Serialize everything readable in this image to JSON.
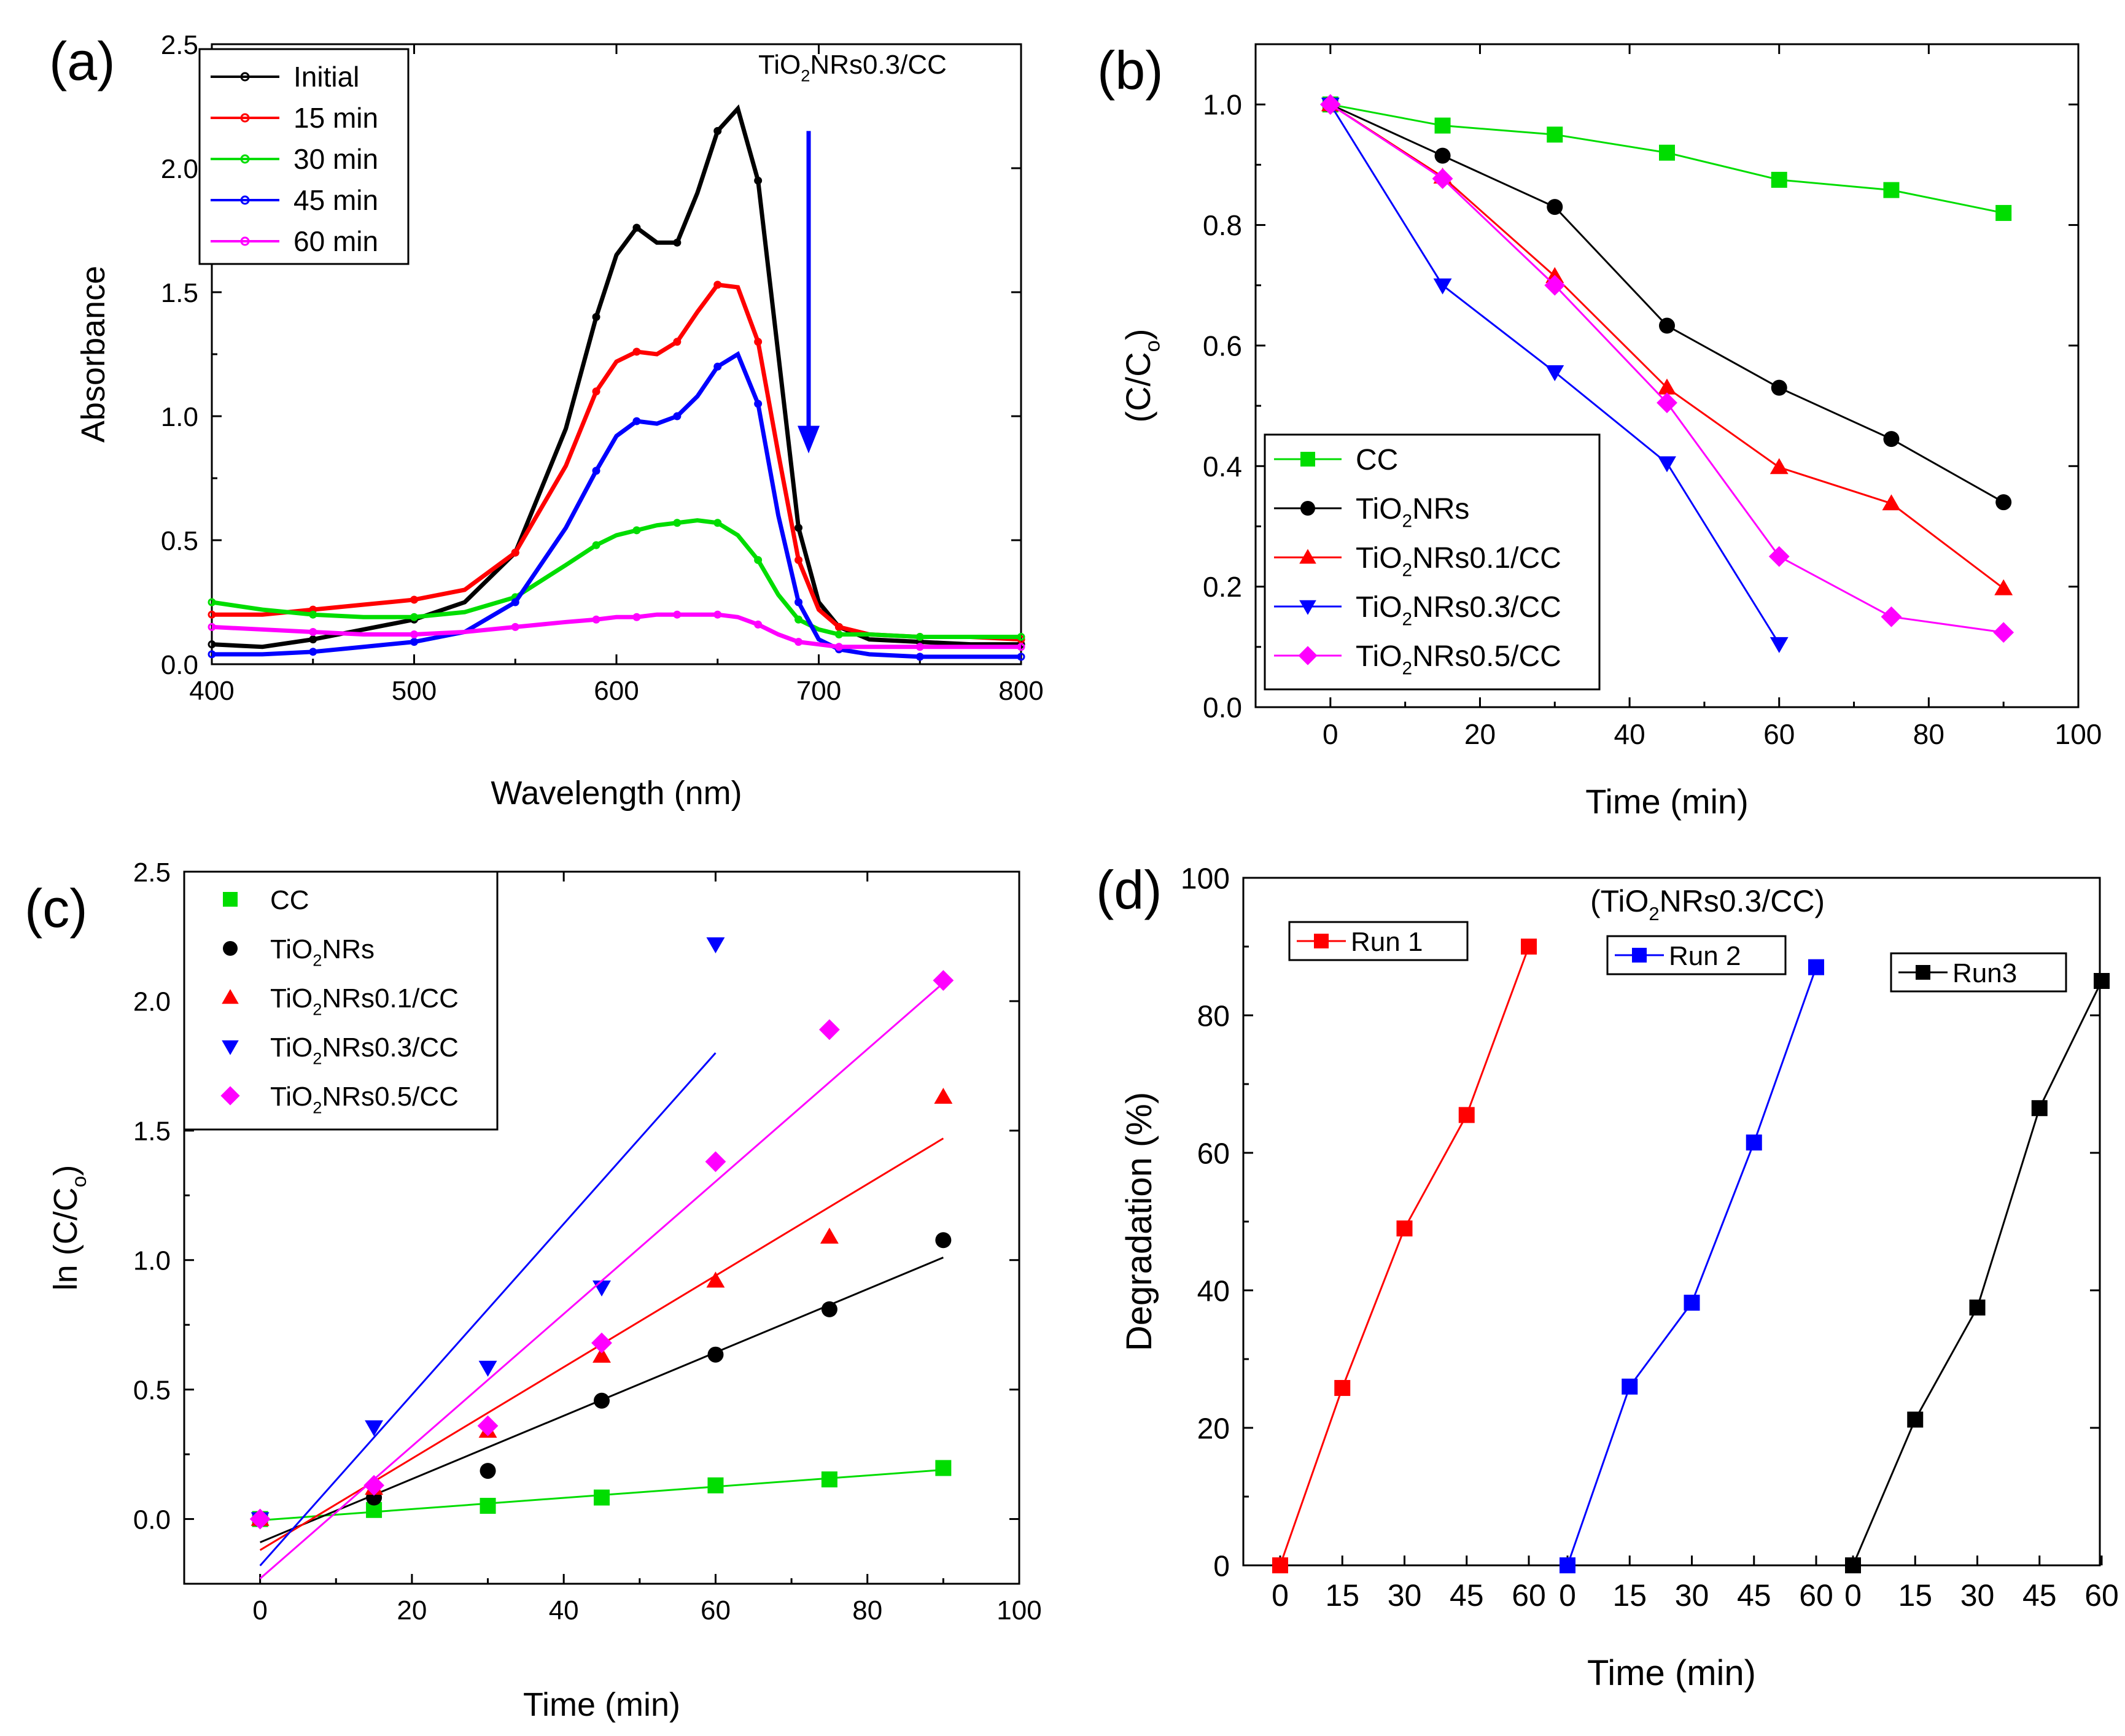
{
  "chart_data": [
    {
      "panel": "(a)",
      "type": "line",
      "title": "",
      "annotation": {
        "prefix": "TiO",
        "sub": "2",
        "suffix": "NRs0.3/CC"
      },
      "xlabel": "Wavelength (nm)",
      "ylabel": "Absorbance",
      "xlim": [
        400,
        800
      ],
      "ylim": [
        0,
        2.5
      ],
      "xticks": [
        400,
        500,
        600,
        700,
        800
      ],
      "yticks": [
        0.0,
        0.5,
        1.0,
        1.5,
        2.0,
        2.5
      ],
      "ytick_labels": [
        "0.0",
        "0.5",
        "1.0",
        "1.5",
        "2.0",
        "2.5"
      ],
      "legend_position": "top-left",
      "arrow": {
        "direction": "down",
        "x_data": 695,
        "y_from": 2.15,
        "y_to": 0.85
      },
      "x": [
        400,
        425,
        450,
        475,
        500,
        525,
        550,
        575,
        590,
        600,
        610,
        620,
        630,
        640,
        650,
        660,
        670,
        680,
        690,
        700,
        710,
        725,
        750,
        775,
        800
      ],
      "series": [
        {
          "name": "Initial",
          "color": "#000000",
          "values": [
            0.08,
            0.07,
            0.1,
            0.14,
            0.18,
            0.25,
            0.45,
            0.95,
            1.4,
            1.65,
            1.76,
            1.7,
            1.7,
            1.9,
            2.15,
            2.24,
            1.95,
            1.25,
            0.55,
            0.25,
            0.15,
            0.1,
            0.09,
            0.08,
            0.08
          ]
        },
        {
          "name": "15 min",
          "color": "#ff0000",
          "values": [
            0.2,
            0.2,
            0.22,
            0.24,
            0.26,
            0.3,
            0.45,
            0.8,
            1.1,
            1.22,
            1.26,
            1.25,
            1.3,
            1.42,
            1.53,
            1.52,
            1.3,
            0.85,
            0.42,
            0.22,
            0.15,
            0.12,
            0.11,
            0.11,
            0.1
          ]
        },
        {
          "name": "30 min",
          "color": "#00dd00",
          "values": [
            0.25,
            0.22,
            0.2,
            0.19,
            0.19,
            0.21,
            0.27,
            0.4,
            0.48,
            0.52,
            0.54,
            0.56,
            0.57,
            0.58,
            0.57,
            0.52,
            0.42,
            0.28,
            0.18,
            0.14,
            0.12,
            0.12,
            0.11,
            0.11,
            0.11
          ]
        },
        {
          "name": "45 min",
          "color": "#0000ff",
          "values": [
            0.04,
            0.04,
            0.05,
            0.07,
            0.09,
            0.13,
            0.25,
            0.55,
            0.78,
            0.92,
            0.98,
            0.97,
            1.0,
            1.08,
            1.2,
            1.25,
            1.05,
            0.6,
            0.25,
            0.1,
            0.06,
            0.04,
            0.03,
            0.03,
            0.03
          ]
        },
        {
          "name": "60 min",
          "color": "#ff00ff",
          "values": [
            0.15,
            0.14,
            0.13,
            0.12,
            0.12,
            0.13,
            0.15,
            0.17,
            0.18,
            0.19,
            0.19,
            0.2,
            0.2,
            0.2,
            0.2,
            0.19,
            0.16,
            0.12,
            0.09,
            0.08,
            0.07,
            0.07,
            0.07,
            0.07,
            0.07
          ]
        }
      ]
    },
    {
      "panel": "(b)",
      "type": "line",
      "title": "",
      "xlabel": "Time (min)",
      "ylabel": "(C/C₀)",
      "ylabel_parts": {
        "main": "(C/C",
        "sub": "o",
        "close": ")"
      },
      "xlim": [
        -10,
        100
      ],
      "ylim": [
        0,
        1.1
      ],
      "xticks": [
        0,
        20,
        40,
        60,
        80,
        100
      ],
      "yticks": [
        0.0,
        0.2,
        0.4,
        0.6,
        0.8,
        1.0
      ],
      "ytick_labels": [
        "0.0",
        "0.2",
        "0.4",
        "0.6",
        "0.8",
        "1.0"
      ],
      "legend_position": "bottom-left",
      "series": [
        {
          "name": "CC",
          "color": "#00dd00",
          "marker": "square",
          "x": [
            0,
            15,
            30,
            45,
            60,
            75,
            90
          ],
          "values": [
            1.0,
            0.965,
            0.95,
            0.92,
            0.875,
            0.858,
            0.82
          ]
        },
        {
          "name": "TiO2NRs",
          "color": "#000000",
          "marker": "circle",
          "x": [
            0,
            15,
            30,
            45,
            60,
            75,
            90
          ],
          "values": [
            1.0,
            0.915,
            0.83,
            0.633,
            0.53,
            0.445,
            0.34
          ]
        },
        {
          "name": "TiO2NRs0.1/CC",
          "color": "#ff0000",
          "marker": "triangle-up",
          "x": [
            0,
            15,
            30,
            45,
            60,
            75,
            90
          ],
          "values": [
            1.0,
            0.88,
            0.715,
            0.53,
            0.398,
            0.338,
            0.197
          ]
        },
        {
          "name": "TiO2NRs0.3/CC",
          "color": "#0000ff",
          "marker": "triangle-down",
          "x": [
            0,
            15,
            30,
            45,
            60
          ],
          "values": [
            1.0,
            0.7,
            0.556,
            0.405,
            0.105
          ]
        },
        {
          "name": "TiO2NRs0.5/CC",
          "color": "#ff00ff",
          "marker": "diamond",
          "x": [
            0,
            15,
            30,
            45,
            60,
            75,
            90
          ],
          "values": [
            1.0,
            0.877,
            0.7,
            0.505,
            0.25,
            0.15,
            0.124
          ]
        }
      ]
    },
    {
      "panel": "(c)",
      "type": "scatter",
      "title": "",
      "xlabel": "Time (min)",
      "ylabel": "ln (C/C₀)",
      "ylabel_parts": {
        "main": "ln (C/C",
        "sub": "o",
        "close": ")"
      },
      "xlim": [
        -10,
        100
      ],
      "ylim": [
        -0.25,
        2.5
      ],
      "xticks": [
        0,
        20,
        40,
        60,
        80,
        100
      ],
      "yticks": [
        0.0,
        0.5,
        1.0,
        1.5,
        2.0,
        2.5
      ],
      "ytick_labels": [
        "0.0",
        "0.5",
        "1.0",
        "1.5",
        "2.0",
        "2.5"
      ],
      "legend_position": "top-left",
      "series": [
        {
          "name": "CC",
          "color": "#00dd00",
          "marker": "square",
          "x": [
            0,
            15,
            30,
            45,
            60,
            75,
            90
          ],
          "values": [
            0.0,
            0.035,
            0.051,
            0.083,
            0.13,
            0.153,
            0.197
          ],
          "fit": {
            "x": [
              0,
              90
            ],
            "y": [
              -0.005,
              0.19
            ]
          }
        },
        {
          "name": "TiO2NRs",
          "color": "#000000",
          "marker": "circle",
          "x": [
            0,
            15,
            30,
            45,
            60,
            75,
            90
          ],
          "values": [
            0.0,
            0.083,
            0.186,
            0.457,
            0.635,
            0.81,
            1.077
          ],
          "fit": {
            "x": [
              0,
              90
            ],
            "y": [
              -0.09,
              1.01
            ]
          }
        },
        {
          "name": "TiO2NRs0.1/CC",
          "color": "#ff0000",
          "marker": "triangle-up",
          "x": [
            0,
            15,
            30,
            45,
            60,
            75,
            90
          ],
          "values": [
            0.0,
            0.12,
            0.34,
            0.63,
            0.92,
            1.09,
            1.63
          ],
          "fit": {
            "x": [
              0,
              90
            ],
            "y": [
              -0.12,
              1.47
            ]
          }
        },
        {
          "name": "TiO2NRs0.3/CC",
          "color": "#0000ff",
          "marker": "triangle-down",
          "x": [
            0,
            15,
            30,
            45,
            60
          ],
          "values": [
            0.0,
            0.355,
            0.585,
            0.895,
            2.22
          ],
          "fit": {
            "x": [
              0,
              60
            ],
            "y": [
              -0.18,
              1.8
            ]
          }
        },
        {
          "name": "TiO2NRs0.5/CC",
          "color": "#ff00ff",
          "marker": "diamond",
          "x": [
            0,
            15,
            30,
            45,
            60,
            75,
            90
          ],
          "values": [
            0.0,
            0.13,
            0.36,
            0.68,
            1.38,
            1.89,
            2.08
          ],
          "fit": {
            "x": [
              0,
              90
            ],
            "y": [
              -0.23,
              2.07
            ]
          }
        }
      ]
    },
    {
      "panel": "(d)",
      "type": "line",
      "title": "",
      "subtitle": {
        "prefix": "(TiO",
        "sub": "2",
        "suffix": "NRs0.3/CC)"
      },
      "xlabel": "Time (min)",
      "ylabel": "Degradation (%)",
      "ylim": [
        0,
        100
      ],
      "yticks": [
        0,
        20,
        40,
        60,
        80,
        100
      ],
      "ytick_labels": [
        "0",
        "20",
        "40",
        "60",
        "80",
        "100"
      ],
      "xtick_labels": [
        "0",
        "15",
        "30",
        "45",
        "60",
        "0",
        "15",
        "30",
        "45",
        "60",
        "0",
        "15",
        "30",
        "45",
        "60"
      ],
      "series": [
        {
          "name": "Run 1",
          "color": "#ff0000",
          "marker": "square",
          "x": [
            0,
            15,
            30,
            45,
            60
          ],
          "values": [
            0,
            25.8,
            49,
            65.5,
            90
          ]
        },
        {
          "name": "Run 2",
          "color": "#0000ff",
          "marker": "square",
          "x": [
            0,
            15,
            30,
            45,
            60
          ],
          "values": [
            0,
            26,
            38.2,
            61.5,
            87
          ]
        },
        {
          "name": "Run3",
          "color": "#000000",
          "marker": "square",
          "x": [
            0,
            15,
            30,
            45,
            60
          ],
          "values": [
            0,
            21.2,
            37.5,
            66.5,
            85
          ]
        }
      ]
    }
  ]
}
